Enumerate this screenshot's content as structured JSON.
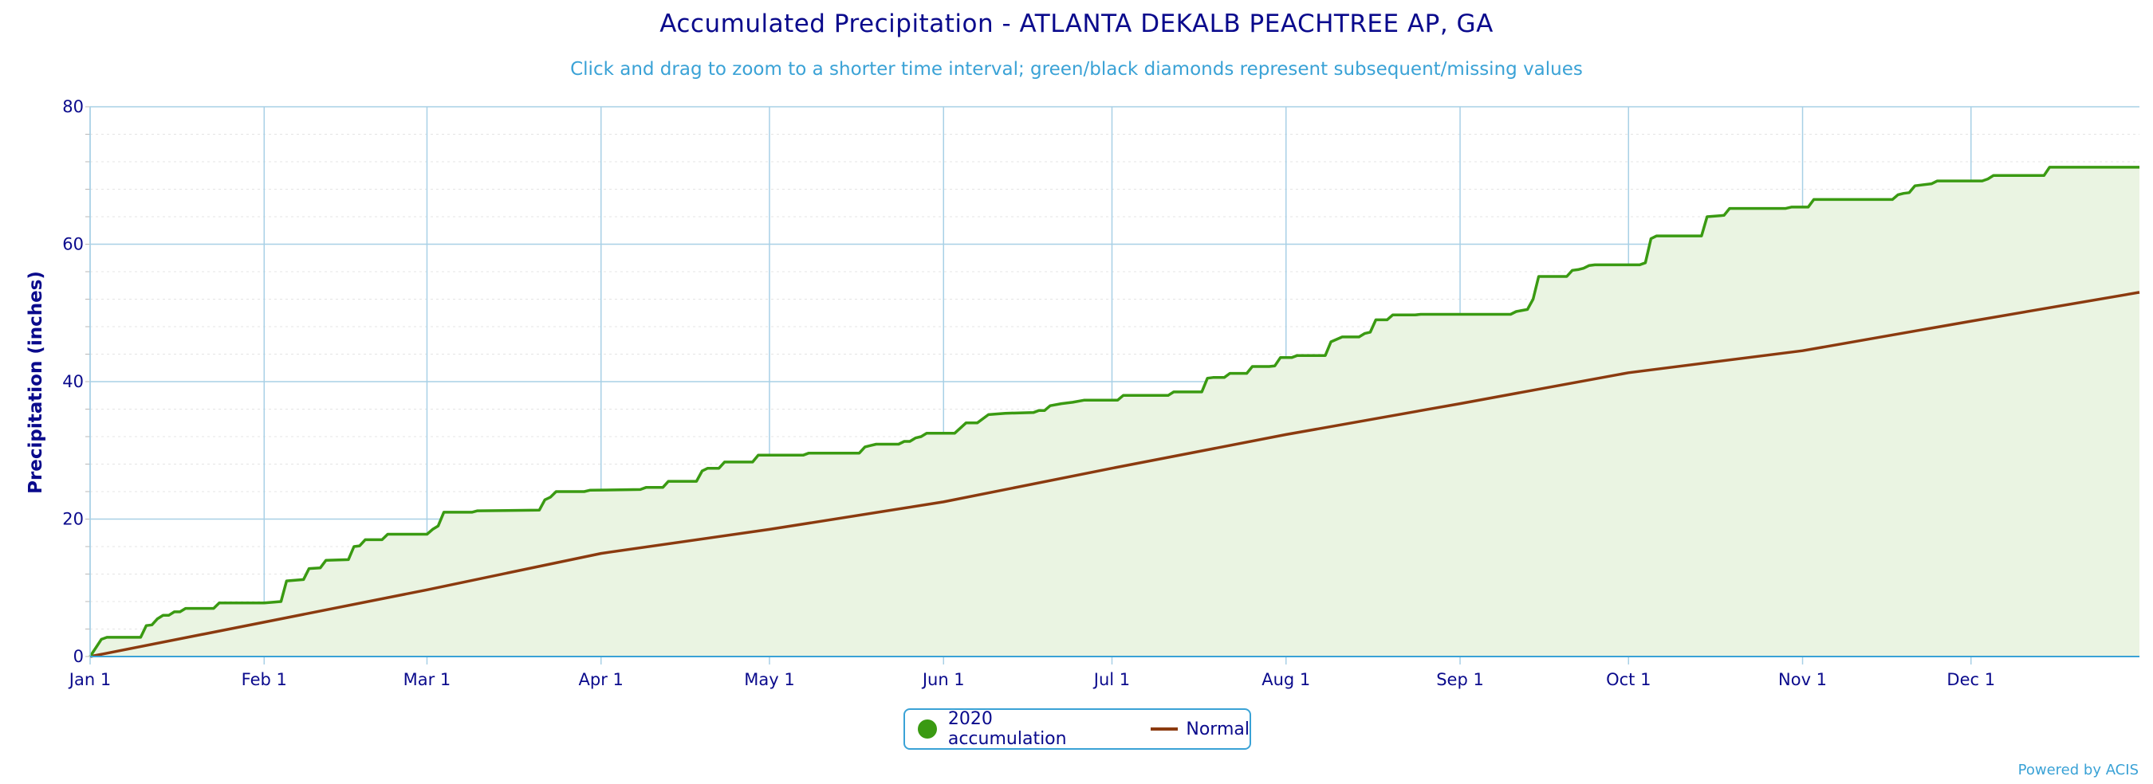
{
  "title": "Accumulated Precipitation - ATLANTA DEKALB PEACHTREE AP, GA",
  "subtitle": "Click and drag to zoom to a shorter time interval; green/black diamonds represent subsequent/missing values",
  "credits": "Powered by ACIS",
  "colors": {
    "accumulation": "#3a9a12",
    "accumulation_fill": "#eaf4e2",
    "normal": "#8b3a0f",
    "grid_major": "#a8d0e6",
    "grid_minor": "#e4e4e4",
    "axis_text": "#0a0a8c",
    "accent": "#3aa2d6"
  },
  "legend": {
    "items": [
      {
        "label": "2020 accumulation",
        "symbol": "circle"
      },
      {
        "label": "Normal",
        "symbol": "line"
      }
    ]
  },
  "chart_data": {
    "type": "area",
    "title": "Accumulated Precipitation - ATLANTA DEKALB PEACHTREE AP, GA",
    "subtitle": "Click and drag to zoom to a shorter time interval; green/black diamonds represent subsequent/missing values",
    "xlabel": "",
    "ylabel": "Precipitation (inches)",
    "ylim": [
      0,
      80
    ],
    "yticks": [
      0,
      20,
      40,
      60,
      80
    ],
    "xlim_days": [
      1,
      366
    ],
    "xticks": [
      {
        "label": "Jan 1",
        "day": 1
      },
      {
        "label": "Feb 1",
        "day": 32
      },
      {
        "label": "Mar 1",
        "day": 61
      },
      {
        "label": "Apr 1",
        "day": 92
      },
      {
        "label": "May 1",
        "day": 122
      },
      {
        "label": "Jun 1",
        "day": 153
      },
      {
        "label": "Jul 1",
        "day": 183
      },
      {
        "label": "Aug 1",
        "day": 214
      },
      {
        "label": "Sep 1",
        "day": 245
      },
      {
        "label": "Oct 1",
        "day": 275
      },
      {
        "label": "Nov 1",
        "day": 306
      },
      {
        "label": "Dec 1",
        "day": 336
      }
    ],
    "grid": true,
    "legend_position": "bottom-center",
    "series": [
      {
        "name": "2020 accumulation",
        "style": "step-area",
        "points": [
          [
            1,
            0
          ],
          [
            3,
            2.5
          ],
          [
            4,
            2.8
          ],
          [
            10,
            2.8
          ],
          [
            11,
            4.5
          ],
          [
            12,
            4.6
          ],
          [
            13,
            5.5
          ],
          [
            14,
            6.0
          ],
          [
            15,
            6.0
          ],
          [
            16,
            6.5
          ],
          [
            17,
            6.5
          ],
          [
            18,
            7.0
          ],
          [
            23,
            7.0
          ],
          [
            24,
            7.8
          ],
          [
            32,
            7.8
          ],
          [
            35,
            8.0
          ],
          [
            36,
            11.0
          ],
          [
            39,
            11.2
          ],
          [
            40,
            12.8
          ],
          [
            42,
            12.9
          ],
          [
            43,
            14.0
          ],
          [
            47,
            14.1
          ],
          [
            48,
            16.0
          ],
          [
            49,
            16.1
          ],
          [
            50,
            17.0
          ],
          [
            53,
            17.0
          ],
          [
            54,
            17.8
          ],
          [
            61,
            17.8
          ],
          [
            62,
            18.5
          ],
          [
            63,
            19.0
          ],
          [
            64,
            21.0
          ],
          [
            69,
            21.0
          ],
          [
            70,
            21.2
          ],
          [
            81,
            21.3
          ],
          [
            82,
            22.8
          ],
          [
            83,
            23.2
          ],
          [
            84,
            24.0
          ],
          [
            89,
            24.0
          ],
          [
            90,
            24.2
          ],
          [
            99,
            24.3
          ],
          [
            100,
            24.6
          ],
          [
            103,
            24.6
          ],
          [
            104,
            25.5
          ],
          [
            109,
            25.5
          ],
          [
            110,
            27.0
          ],
          [
            111,
            27.4
          ],
          [
            113,
            27.4
          ],
          [
            114,
            28.3
          ],
          [
            119,
            28.3
          ],
          [
            120,
            29.3
          ],
          [
            128,
            29.3
          ],
          [
            129,
            29.6
          ],
          [
            138,
            29.6
          ],
          [
            139,
            30.5
          ],
          [
            140,
            30.7
          ],
          [
            141,
            30.9
          ],
          [
            145,
            30.9
          ],
          [
            146,
            31.3
          ],
          [
            147,
            31.3
          ],
          [
            148,
            31.8
          ],
          [
            149,
            32.0
          ],
          [
            150,
            32.5
          ],
          [
            155,
            32.5
          ],
          [
            157,
            34.0
          ],
          [
            159,
            34.0
          ],
          [
            161,
            35.2
          ],
          [
            164,
            35.4
          ],
          [
            169,
            35.5
          ],
          [
            170,
            35.8
          ],
          [
            171,
            35.8
          ],
          [
            172,
            36.5
          ],
          [
            174,
            36.8
          ],
          [
            176,
            37.0
          ],
          [
            178,
            37.3
          ],
          [
            184,
            37.3
          ],
          [
            185,
            38.0
          ],
          [
            193,
            38.0
          ],
          [
            194,
            38.5
          ],
          [
            199,
            38.5
          ],
          [
            200,
            40.5
          ],
          [
            201,
            40.6
          ],
          [
            203,
            40.6
          ],
          [
            204,
            41.2
          ],
          [
            207,
            41.2
          ],
          [
            208,
            42.2
          ],
          [
            211,
            42.2
          ],
          [
            212,
            42.3
          ],
          [
            213,
            43.5
          ],
          [
            215,
            43.5
          ],
          [
            216,
            43.8
          ],
          [
            221,
            43.8
          ],
          [
            222,
            45.8
          ],
          [
            224,
            46.5
          ],
          [
            227,
            46.5
          ],
          [
            228,
            47.0
          ],
          [
            229,
            47.2
          ],
          [
            230,
            49.0
          ],
          [
            232,
            49.0
          ],
          [
            233,
            49.7
          ],
          [
            237,
            49.7
          ],
          [
            238,
            49.8
          ],
          [
            254,
            49.8
          ],
          [
            255,
            50.2
          ],
          [
            257,
            50.5
          ],
          [
            258,
            52.0
          ],
          [
            259,
            55.3
          ],
          [
            264,
            55.3
          ],
          [
            265,
            56.2
          ],
          [
            266,
            56.3
          ],
          [
            267,
            56.5
          ],
          [
            268,
            56.9
          ],
          [
            269,
            57.0
          ],
          [
            277,
            57.0
          ],
          [
            278,
            57.3
          ],
          [
            279,
            60.8
          ],
          [
            280,
            61.2
          ],
          [
            288,
            61.2
          ],
          [
            289,
            64.0
          ],
          [
            292,
            64.2
          ],
          [
            293,
            65.2
          ],
          [
            303,
            65.2
          ],
          [
            304,
            65.4
          ],
          [
            307,
            65.4
          ],
          [
            308,
            66.5
          ],
          [
            322,
            66.5
          ],
          [
            323,
            67.2
          ],
          [
            324,
            67.4
          ],
          [
            325,
            67.5
          ],
          [
            326,
            68.5
          ],
          [
            329,
            68.8
          ],
          [
            330,
            69.2
          ],
          [
            338,
            69.2
          ],
          [
            339,
            69.5
          ],
          [
            340,
            70.0
          ],
          [
            349,
            70.0
          ],
          [
            350,
            71.2
          ],
          [
            357,
            71.2
          ],
          [
            366,
            71.2
          ]
        ]
      },
      {
        "name": "Normal",
        "style": "line",
        "points": [
          [
            1,
            0
          ],
          [
            32,
            5.0
          ],
          [
            61,
            9.7
          ],
          [
            92,
            15.0
          ],
          [
            122,
            18.5
          ],
          [
            153,
            22.5
          ],
          [
            183,
            27.4
          ],
          [
            214,
            32.3
          ],
          [
            245,
            36.8
          ],
          [
            275,
            41.3
          ],
          [
            306,
            44.5
          ],
          [
            336,
            48.8
          ],
          [
            366,
            53.0
          ]
        ]
      }
    ]
  }
}
